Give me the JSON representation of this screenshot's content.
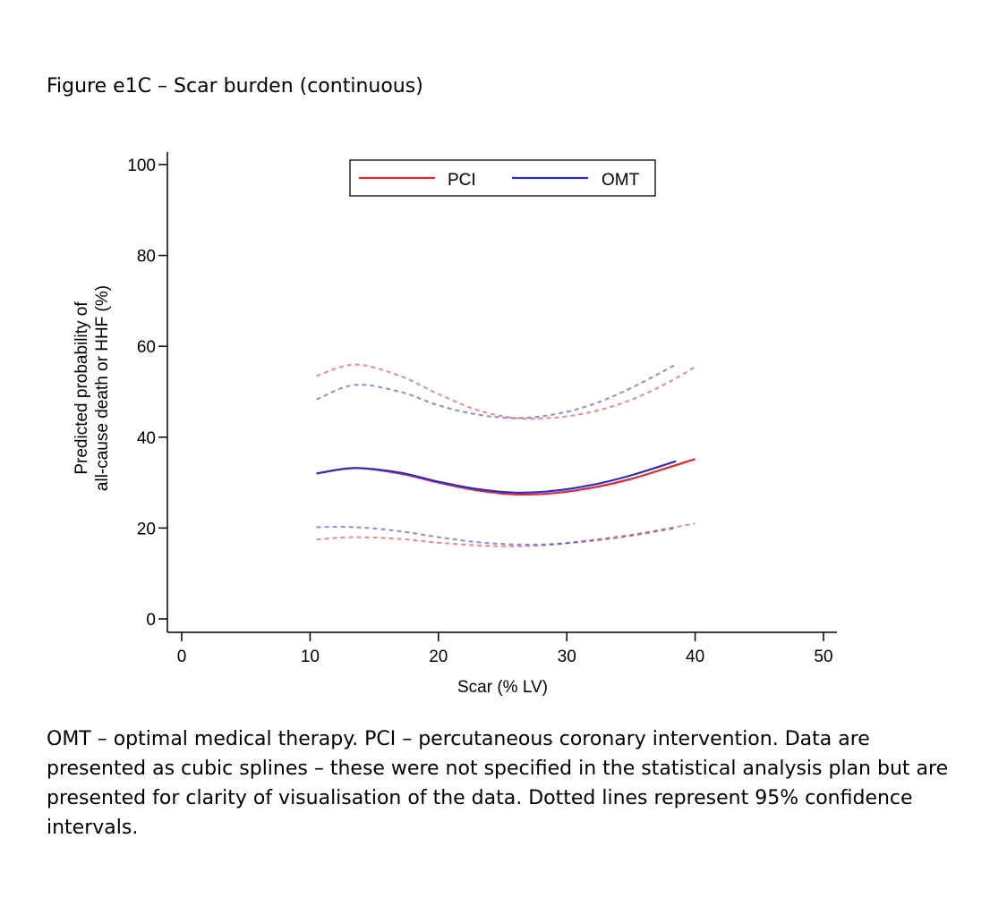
{
  "figure_title": "Figure e1C – Scar burden (continuous)",
  "caption": "OMT – optimal medical therapy.  PCI – percutaneous coronary intervention.  Data are presented as cubic splines – these were not specified in the statistical analysis plan but are presented for clarity of visualisation of the data.  Dotted lines represent 95% confidence intervals.",
  "chart_data": {
    "type": "line",
    "title": "",
    "xlabel": "Scar (% LV)",
    "ylabel": [
      "Predicted probability of",
      "all-cause death or HHF (%)"
    ],
    "xlim": [
      0,
      50
    ],
    "ylim": [
      0,
      100
    ],
    "xticks": [
      0,
      10,
      20,
      30,
      40,
      50
    ],
    "yticks": [
      0,
      20,
      40,
      60,
      80,
      100
    ],
    "xtick_labels": [
      "0",
      "10",
      "20",
      "30",
      "40",
      "50"
    ],
    "ytick_labels": [
      "0",
      "20",
      "40",
      "60",
      "80",
      "100"
    ],
    "legend": {
      "position": "top",
      "entries": [
        "PCI",
        "OMT"
      ]
    },
    "series": [
      {
        "name": "PCI",
        "color": "#e8232a",
        "x": [
          10.5,
          13.5,
          17,
          20,
          23,
          26,
          29,
          32,
          35,
          38,
          40
        ],
        "estimate": [
          32.0,
          33.2,
          32.0,
          30.0,
          28.3,
          27.4,
          27.7,
          28.9,
          30.8,
          33.4,
          35.2
        ],
        "ci_upper": [
          53.5,
          56.0,
          53.5,
          49.5,
          46.0,
          44.2,
          44.3,
          45.6,
          48.2,
          52.2,
          55.5
        ],
        "ci_lower": [
          17.5,
          18.0,
          17.6,
          16.8,
          16.2,
          16.0,
          16.4,
          17.4,
          18.5,
          20.0,
          21.0
        ]
      },
      {
        "name": "OMT",
        "color": "#2d2ac8",
        "x": [
          10.5,
          13.5,
          17,
          20,
          23,
          26,
          29,
          32,
          35,
          38.5
        ],
        "estimate": [
          32.0,
          33.2,
          32.2,
          30.2,
          28.6,
          27.8,
          28.2,
          29.5,
          31.6,
          34.7
        ],
        "ci_upper": [
          48.3,
          51.5,
          50.0,
          47.0,
          45.0,
          44.2,
          45.0,
          47.2,
          50.8,
          56.0
        ],
        "ci_lower": [
          20.2,
          20.2,
          19.3,
          18.0,
          16.9,
          16.4,
          16.5,
          17.2,
          18.3,
          20.0
        ]
      }
    ]
  }
}
